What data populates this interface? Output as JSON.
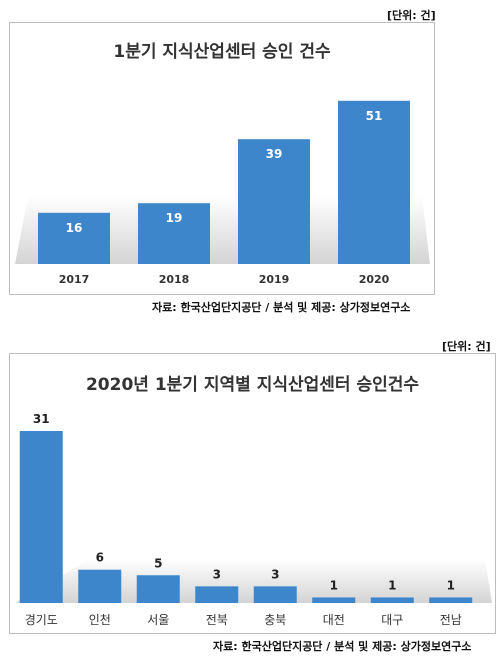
{
  "chart_data": [
    {
      "type": "bar",
      "title": "1분기 지식산업센터 승인 건수",
      "unit_label": "[단위: 건]",
      "source": "자료: 한국산업단지공단 / 분석 및 제공: 상가정보연구소",
      "categories": [
        "2017",
        "2018",
        "2019",
        "2020"
      ],
      "values": [
        16,
        19,
        39,
        51
      ],
      "ylim": [
        0,
        60
      ],
      "xlabel": "",
      "ylabel": "",
      "grid": false,
      "legend": "none",
      "bar_color": "#3d86cc",
      "label_color": "#ffffff"
    },
    {
      "type": "bar",
      "title": "2020년 1분기 지역별 지식산업센터 승인건수",
      "unit_label": "[단위: 건]",
      "source": "자료: 한국산업단지공단 / 분석 및 제공: 상가정보연구소",
      "categories": [
        "경기도",
        "인천",
        "서울",
        "전북",
        "충북",
        "대전",
        "대구",
        "전남"
      ],
      "values": [
        31,
        6,
        5,
        3,
        3,
        1,
        1,
        1
      ],
      "ylim": [
        0,
        31
      ],
      "xlabel": "",
      "ylabel": "",
      "grid": false,
      "legend": "none",
      "bar_color": "#3d86cc",
      "label_color": "#222222"
    }
  ]
}
